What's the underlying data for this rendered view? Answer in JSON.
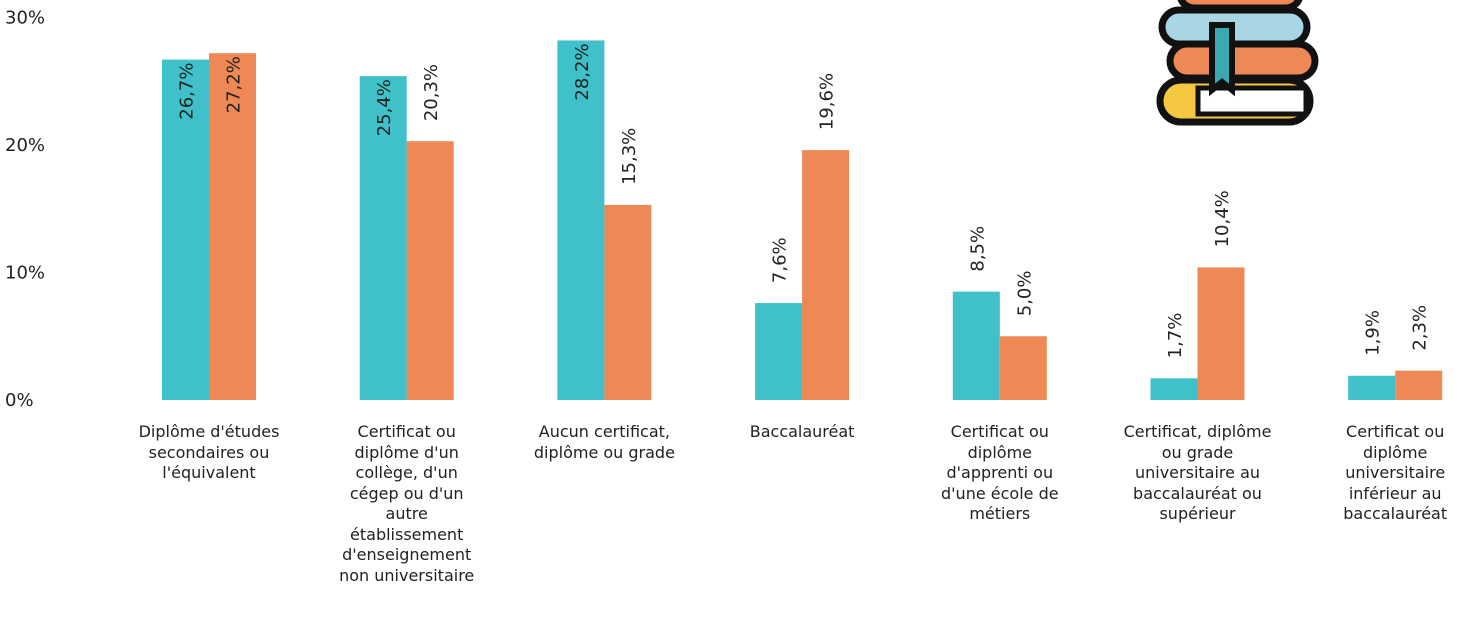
{
  "chart_data": {
    "type": "bar",
    "categories": [
      "Diplôme d'études secondaires ou l'équivalent",
      "Certificat ou diplôme d'un collège, d'un cégep ou d'un autre établissement d'enseignement non universitaire",
      "Aucun certificat, diplôme ou grade",
      "Baccalauréat",
      "Certificat ou diplôme d'apprenti ou d'une école de métiers",
      "Certificat, diplôme ou grade universitaire au baccalauréat ou supérieur",
      "Certificat ou diplôme universitaire inférieur au baccalauréat"
    ],
    "series": [
      {
        "color": "#40c0c8",
        "values": [
          26.7,
          25.4,
          28.2,
          7.6,
          8.5,
          1.7,
          1.9
        ],
        "value_labels": [
          "26,7%",
          "25,4%",
          "28,2%",
          "7,6%",
          "8,5%",
          "1,7%",
          "1,9%"
        ]
      },
      {
        "color": "#ee8855",
        "values": [
          27.2,
          20.3,
          15.3,
          19.6,
          5.0,
          10.4,
          2.3
        ],
        "value_labels": [
          "27,2%",
          "20,3%",
          "15,3%",
          "19,6%",
          "5,0%",
          "10,4%",
          "2,3%"
        ]
      }
    ],
    "ylim": [
      0,
      30
    ],
    "yticks": [
      {
        "value": 0,
        "label": "0%"
      },
      {
        "value": 10,
        "label": "10%"
      },
      {
        "value": 20,
        "label": "20%"
      },
      {
        "value": 30,
        "label": "30%"
      }
    ],
    "grid": false
  }
}
